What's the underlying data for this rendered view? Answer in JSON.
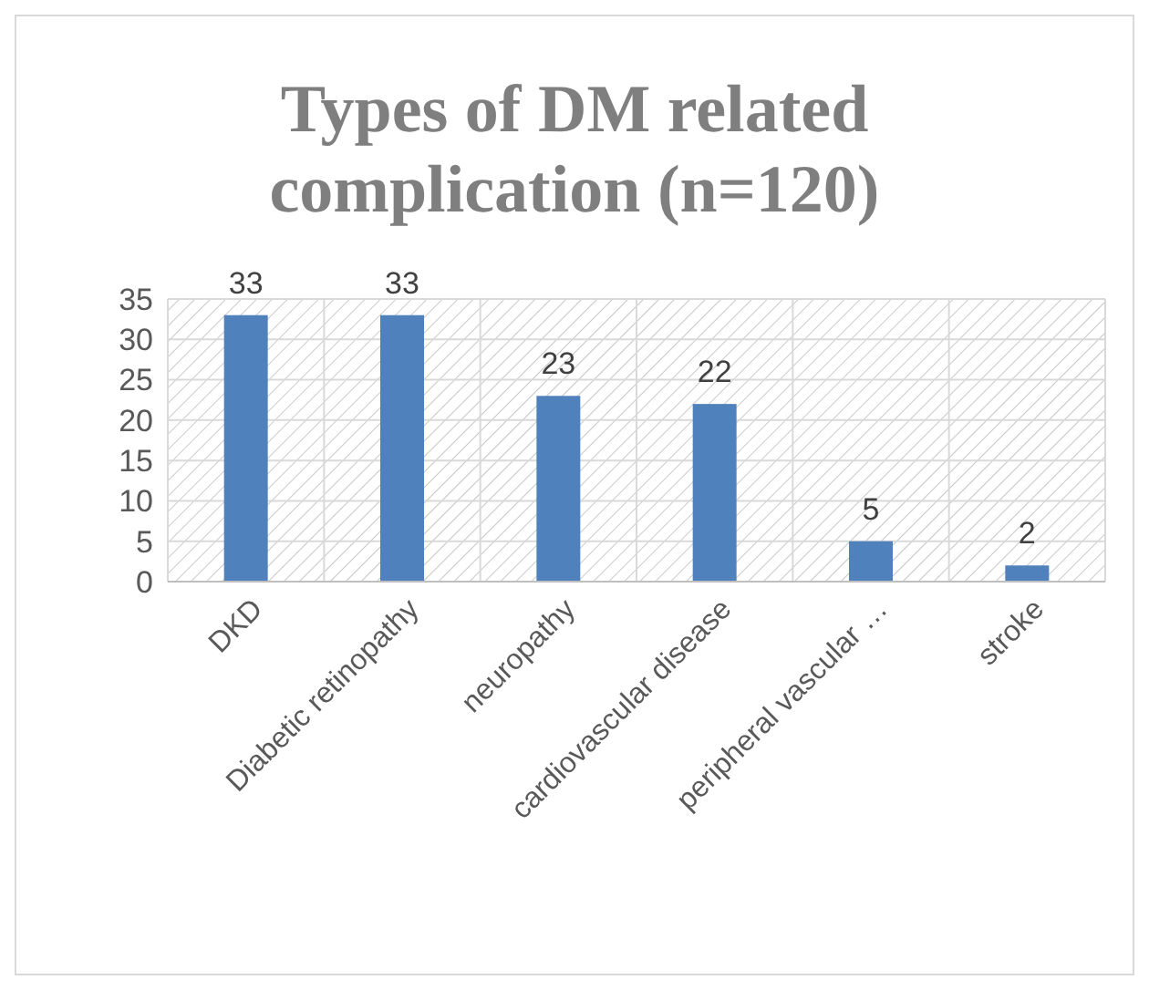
{
  "chart_data": {
    "type": "bar",
    "title": "Types of DM related complication (n=120)",
    "categories": [
      "DKD",
      "Diabetic retinopathy",
      "neuropathy",
      "cardiovascular disease",
      "peripheral vascular …",
      "stroke"
    ],
    "values": [
      33,
      33,
      23,
      22,
      5,
      2
    ],
    "color": "#4f81bd",
    "ylim": [
      0,
      35
    ],
    "yticks": [
      0,
      5,
      10,
      15,
      20,
      25,
      30,
      35
    ],
    "grid": true,
    "data_labels": true
  }
}
